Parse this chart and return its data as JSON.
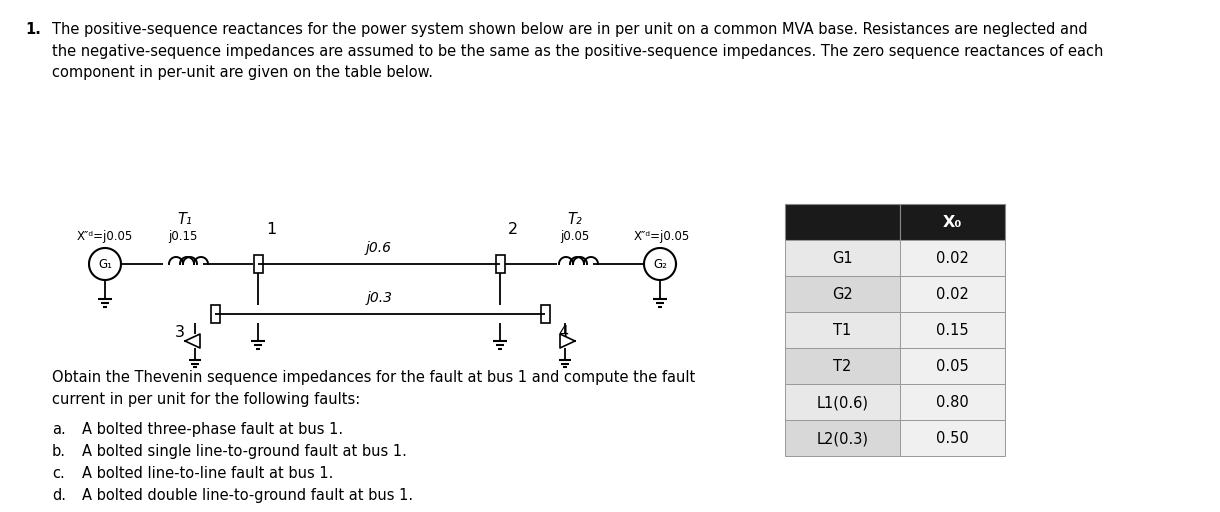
{
  "title_number": "1.",
  "title_text": "The positive-sequence reactances for the power system shown below are in per unit on a common MVA base. Resistances are neglected and\nthe negative-sequence impedances are assumed to be the same as the positive-sequence impedances. The zero sequence reactances of each\ncomponent in per-unit are given on the table below.",
  "table_header_col": "X₀",
  "table_rows": [
    [
      "G1",
      "0.02"
    ],
    [
      "G2",
      "0.02"
    ],
    [
      "T1",
      "0.15"
    ],
    [
      "T2",
      "0.05"
    ],
    [
      "L1(0.6)",
      "0.80"
    ],
    [
      "L2(0.3)",
      "0.50"
    ]
  ],
  "obtain_text": "Obtain the Thevenin sequence impedances for the fault at bus 1 and compute the fault\ncurrent in per unit for the following faults:",
  "items": [
    [
      "a.",
      "A bolted three-phase fault at bus 1."
    ],
    [
      "b.",
      "A bolted single line-to-ground fault at bus 1."
    ],
    [
      "c.",
      "A bolted line-to-line fault at bus 1."
    ],
    [
      "d.",
      "A bolted double line-to-ground fault at bus 1."
    ]
  ],
  "bg_color": "#ffffff",
  "text_color": "#000000",
  "font_size": 10.5
}
